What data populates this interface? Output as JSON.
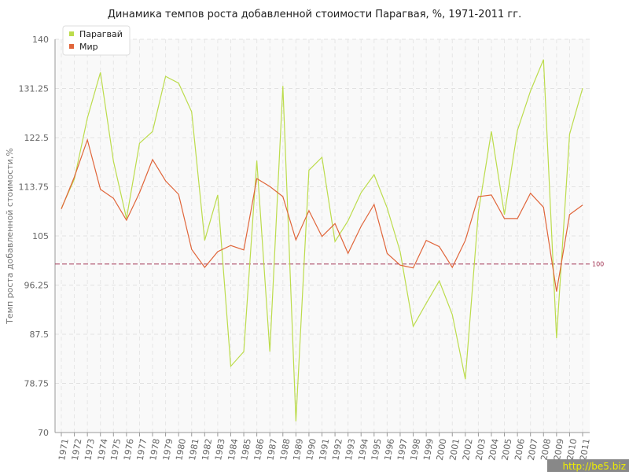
{
  "chart_data": {
    "type": "line",
    "title": "Динамика темпов роста добавленной стоимости Парагвая, %, 1971-2011 гг.",
    "y_label": "Темп роста добавленной стоимости,%",
    "categories": [
      "1971",
      "1972",
      "1973",
      "1974",
      "1975",
      "1976",
      "1977",
      "1978",
      "1979",
      "1980",
      "1981",
      "1982",
      "1983",
      "1984",
      "1985",
      "1986",
      "1987",
      "1988",
      "1989",
      "1990",
      "1991",
      "1992",
      "1993",
      "1994",
      "1995",
      "1996",
      "1997",
      "1998",
      "1999",
      "2000",
      "2001",
      "2002",
      "2003",
      "2004",
      "2005",
      "2006",
      "2007",
      "2008",
      "2009",
      "2010",
      "2011"
    ],
    "series": [
      {
        "name": "Парагвай",
        "color": "#bcdc4c",
        "values": [
          109.9,
          115.1,
          126,
          134.1,
          118.3,
          108.1,
          121.5,
          123.6,
          133.4,
          132.2,
          127.1,
          104.2,
          112.3,
          81.8,
          84.4,
          118.4,
          84.4,
          131.7,
          72,
          116.7,
          119,
          104,
          107.7,
          112.7,
          115.9,
          110,
          102.2,
          88.9,
          93,
          97,
          91,
          79.5,
          109.2,
          123.6,
          108.8,
          123.8,
          130.8,
          136.4,
          86.8,
          123.1,
          131.3
        ]
      },
      {
        "name": "Мир",
        "color": "#e0653a",
        "values": [
          109.8,
          115.5,
          122.1,
          113.3,
          111.7,
          107.8,
          112.7,
          118.6,
          114.8,
          112.4,
          102.6,
          99.4,
          102.2,
          103.3,
          102.5,
          115.2,
          113.8,
          112,
          104.3,
          109.5,
          104.9,
          107.2,
          101.9,
          106.7,
          110.6,
          101.9,
          99.8,
          99.3,
          104.2,
          103.1,
          99.4,
          104.2,
          112,
          112.3,
          108.1,
          108.1,
          112.6,
          110.1,
          95.1,
          108.8,
          110.5
        ]
      }
    ],
    "ylim": [
      70,
      140
    ],
    "yticks": [
      70,
      78.75,
      87.5,
      96.25,
      105,
      113.75,
      122.5,
      131.25,
      140
    ],
    "ref_line": 100,
    "ref_color": "#a03050",
    "grid": true,
    "legend": "top-left",
    "watermark": "http://be5.biz"
  }
}
